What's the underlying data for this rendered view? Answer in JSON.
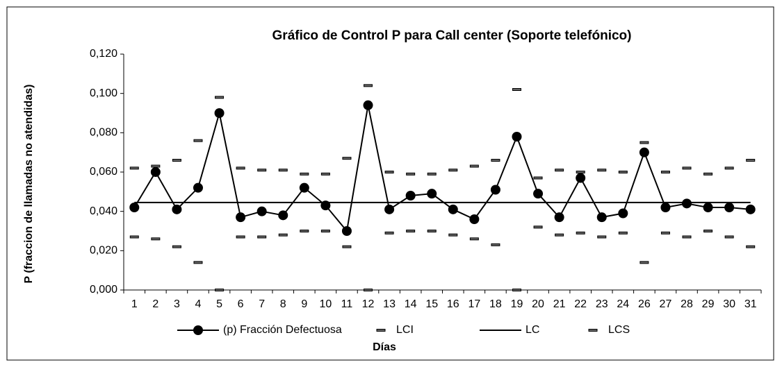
{
  "chart_data": {
    "type": "line",
    "title": "Gráfico de Control P para Call center (Soporte telefónico)",
    "x_label": "Días",
    "y_label": "P (fraccion de llamadas no atendidas)",
    "categories": [
      "1",
      "2",
      "3",
      "4",
      "5",
      "6",
      "7",
      "8",
      "9",
      "10",
      "11",
      "12",
      "13",
      "14",
      "15",
      "16",
      "17",
      "18",
      "19",
      "20",
      "21",
      "22",
      "23",
      "24",
      "26",
      "27",
      "28",
      "29",
      "30",
      "31"
    ],
    "series": [
      {
        "name": "(p) Fracción Defectuosa",
        "color": "#000000",
        "marker": "circle",
        "line": true,
        "values": [
          0.042,
          0.06,
          0.041,
          0.052,
          0.09,
          0.037,
          0.04,
          0.038,
          0.052,
          0.043,
          0.03,
          0.094,
          0.041,
          0.048,
          0.049,
          0.041,
          0.036,
          0.051,
          0.078,
          0.049,
          0.037,
          0.057,
          0.037,
          0.039,
          0.07,
          0.042,
          0.044,
          0.042,
          0.042,
          0.041
        ]
      },
      {
        "name": "LCI",
        "color": "#000000",
        "marker": "dash",
        "line": false,
        "values": [
          0.027,
          0.026,
          0.022,
          0.014,
          0,
          0.027,
          0.027,
          0.028,
          0.03,
          0.03,
          0.022,
          0,
          0.029,
          0.03,
          0.03,
          0.028,
          0.026,
          0.023,
          0,
          0.032,
          0.028,
          0.029,
          0.027,
          0.029,
          0.014,
          0.029,
          0.027,
          0.03,
          0.027,
          0.022
        ]
      },
      {
        "name": "LC",
        "color": "#000000",
        "marker": "none",
        "line": true,
        "values": [
          0.0445,
          0.0445,
          0.0445,
          0.0445,
          0.0445,
          0.0445,
          0.0445,
          0.0445,
          0.0445,
          0.0445,
          0.0445,
          0.0445,
          0.0445,
          0.0445,
          0.0445,
          0.0445,
          0.0445,
          0.0445,
          0.0445,
          0.0445,
          0.0445,
          0.0445,
          0.0445,
          0.0445,
          0.0445,
          0.0445,
          0.0445,
          0.0445,
          0.0445,
          0.0445
        ]
      },
      {
        "name": "LCS",
        "color": "#000000",
        "marker": "dash",
        "line": false,
        "values": [
          0.062,
          0.063,
          0.066,
          0.076,
          0.098,
          0.062,
          0.061,
          0.061,
          0.059,
          0.059,
          0.067,
          0.104,
          0.06,
          0.059,
          0.059,
          0.061,
          0.063,
          0.066,
          0.102,
          0.057,
          0.061,
          0.06,
          0.061,
          0.06,
          0.075,
          0.06,
          0.062,
          0.059,
          0.062,
          0.066
        ]
      }
    ],
    "ylim": [
      0,
      0.12
    ],
    "yticks": [
      {
        "value": 0,
        "label": "0,000"
      },
      {
        "value": 0.02,
        "label": "0,020"
      },
      {
        "value": 0.04,
        "label": "0,040"
      },
      {
        "value": 0.06,
        "label": "0,060"
      },
      {
        "value": 0.08,
        "label": "0,080"
      },
      {
        "value": 0.1,
        "label": "0,100"
      },
      {
        "value": 0.12,
        "label": "0,120"
      }
    ],
    "grid": false,
    "legend": "bottom"
  }
}
